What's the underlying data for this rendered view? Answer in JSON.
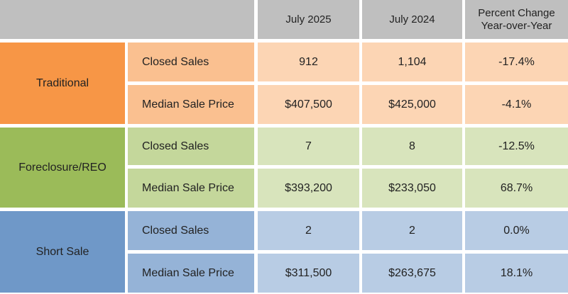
{
  "table": {
    "columns": [
      "July 2025",
      "July 2024",
      "Percent Change Year-over-Year"
    ],
    "groups": [
      {
        "label": "Traditional",
        "rows": [
          [
            "Closed Sales",
            "912",
            "1,104",
            "-17.4%"
          ],
          [
            "Median Sale Price",
            "$407,500",
            "$425,000",
            "-4.1%"
          ]
        ]
      },
      {
        "label": "Foreclosure/REO",
        "rows": [
          [
            "Closed Sales",
            "7",
            "8",
            "-12.5%"
          ],
          [
            "Median Sale Price",
            "$393,200",
            "$233,050",
            "68.7%"
          ]
        ]
      },
      {
        "label": "Short Sale",
        "rows": [
          [
            "Closed Sales",
            "2",
            "2",
            "0.0%"
          ],
          [
            "Median Sale Price",
            "$311,500",
            "$263,675",
            "18.1%"
          ]
        ]
      }
    ]
  }
}
